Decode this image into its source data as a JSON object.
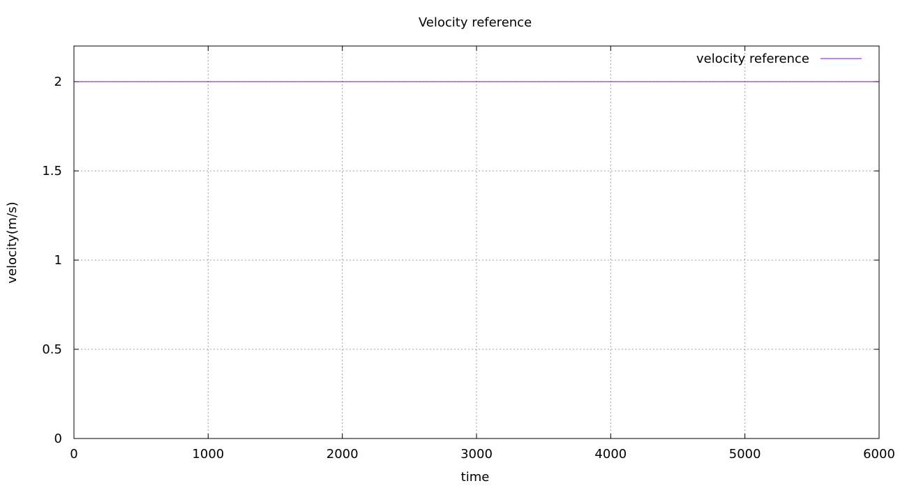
{
  "chart_data": {
    "type": "line",
    "title": "Velocity reference",
    "xlabel": "time",
    "ylabel": "velocity(m/s)",
    "xlim": [
      0,
      6000
    ],
    "ylim": [
      0,
      2.2
    ],
    "xticks": [
      "0",
      "1000",
      "2000",
      "3000",
      "4000",
      "5000",
      "6000"
    ],
    "yticks": [
      "0",
      "0.5",
      "1",
      "1.5",
      "2"
    ],
    "grid": true,
    "legend_position": "top-right",
    "series": [
      {
        "name": "velocity reference",
        "color": "#9400d3",
        "x": [
          0,
          6000
        ],
        "y": [
          2,
          2
        ]
      }
    ]
  }
}
